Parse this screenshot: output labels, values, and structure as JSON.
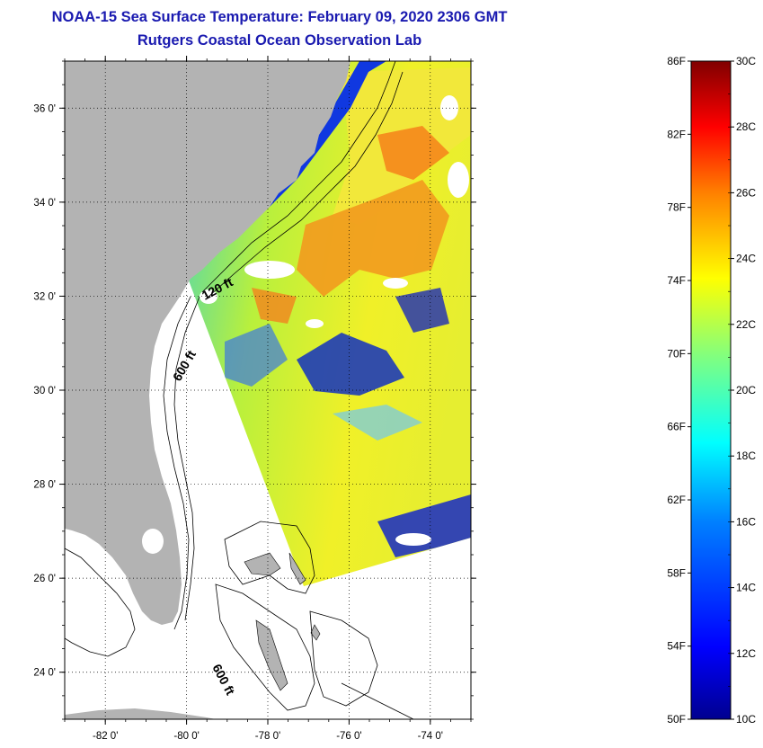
{
  "title": "NOAA-15 Sea Surface Temperature:  February 09, 2020 2306 GMT",
  "subtitle": "Rutgers Coastal Ocean Observation Lab",
  "map": {
    "lat_ticks": [
      {
        "value": 36,
        "label": "36 0'"
      },
      {
        "value": 34,
        "label": "34 0'"
      },
      {
        "value": 32,
        "label": "32 0'"
      },
      {
        "value": 30,
        "label": "30 0'"
      },
      {
        "value": 28,
        "label": "28 0'"
      },
      {
        "value": 26,
        "label": "26 0'"
      },
      {
        "value": 24,
        "label": "24 0'"
      }
    ],
    "lon_ticks": [
      {
        "value": -82,
        "label": "-82 0'"
      },
      {
        "value": -80,
        "label": "-80 0'"
      },
      {
        "value": -78,
        "label": "-78 0'"
      },
      {
        "value": -76,
        "label": "-76 0'"
      },
      {
        "value": -74,
        "label": "-74 0'"
      }
    ],
    "lat_range": [
      23,
      37
    ],
    "lon_range": [
      -83,
      -73
    ],
    "contour_labels": {
      "shelf_120": "120 ft",
      "shelf_600_north": "600 ft",
      "shelf_600_south": "600 ft"
    },
    "colors": {
      "land": "#b3b3b3",
      "ocean_nodata": "#ffffff",
      "contour": "#000000"
    }
  },
  "colorbar": {
    "fahrenheit_labels": [
      "86F",
      "82F",
      "78F",
      "74F",
      "70F",
      "66F",
      "62F",
      "58F",
      "54F",
      "50F"
    ],
    "celsius_labels": [
      "30C",
      "28C",
      "26C",
      "24C",
      "22C",
      "20C",
      "18C",
      "16C",
      "14C",
      "12C",
      "10C"
    ],
    "range_c": [
      10,
      30
    ],
    "range_f": [
      50,
      86
    ],
    "stops": [
      "#00008f",
      "#0000ff",
      "#0080ff",
      "#00ffff",
      "#80ff80",
      "#ffff00",
      "#ff8000",
      "#ff0000",
      "#800000"
    ]
  }
}
